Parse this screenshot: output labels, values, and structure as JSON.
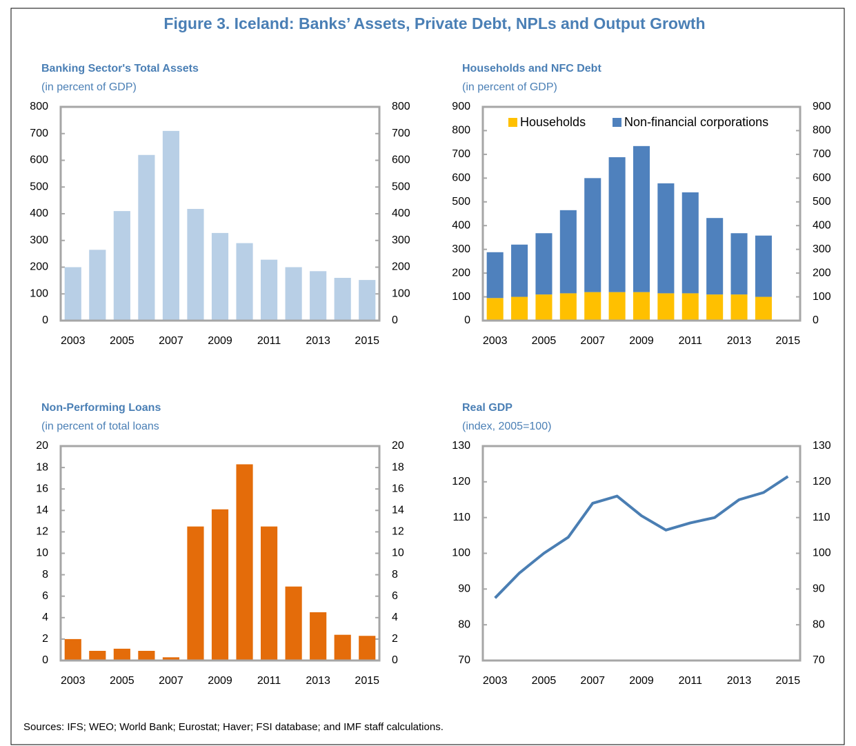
{
  "title": "Figure 3. Iceland: Banks’ Assets, Private Debt, NPLs and Output Growth",
  "source": "Sources: IFS; WEO; World Bank; Eurostat; Haver; FSI database; and IMF staff calculations.",
  "chart_data": [
    {
      "type": "bar",
      "title": "Banking Sector's Total Assets",
      "subtitle": "(in percent of GDP)",
      "categories": [
        "2003",
        null,
        "2005",
        null,
        "2007",
        null,
        "2009",
        null,
        "2011",
        null,
        "2013",
        null,
        "2015"
      ],
      "values": [
        200,
        265,
        410,
        620,
        710,
        418,
        328,
        290,
        228,
        200,
        185,
        160,
        152
      ],
      "color": "#b8cfe6",
      "ylim": [
        0,
        800
      ],
      "yticks": [
        0,
        100,
        200,
        300,
        400,
        500,
        600,
        700,
        800
      ]
    },
    {
      "type": "bar",
      "stacked": true,
      "title": "Households and NFC Debt",
      "subtitle": "(in percent of GDP)",
      "categories": [
        "2003",
        null,
        "2005",
        null,
        "2007",
        null,
        "2009",
        null,
        "2011",
        null,
        "2013",
        null,
        "2015"
      ],
      "series": [
        {
          "name": "Households",
          "color": "#ffc000",
          "values": [
            95,
            100,
            110,
            115,
            120,
            120,
            120,
            115,
            115,
            110,
            110,
            100,
            null
          ]
        },
        {
          "name": "Non-financial corporations",
          "color": "#4f81bd",
          "values": [
            193,
            220,
            258,
            350,
            480,
            568,
            615,
            463,
            425,
            322,
            258,
            258,
            null
          ]
        }
      ],
      "legend": "top",
      "ylim": [
        0,
        900
      ],
      "yticks": [
        0,
        100,
        200,
        300,
        400,
        500,
        600,
        700,
        800,
        900
      ]
    },
    {
      "type": "bar",
      "title": "Non-Performing Loans",
      "subtitle": "(in percent of total loans",
      "categories": [
        "2003",
        null,
        "2005",
        null,
        "2007",
        null,
        "2009",
        null,
        "2011",
        null,
        "2013",
        null,
        "2015"
      ],
      "values": [
        2.0,
        0.9,
        1.1,
        0.9,
        0.3,
        12.5,
        14.1,
        18.3,
        12.5,
        6.9,
        4.5,
        2.4,
        2.3
      ],
      "color": "#e46c0a",
      "ylim": [
        0,
        20
      ],
      "yticks": [
        0,
        2,
        4,
        6,
        8,
        10,
        12,
        14,
        16,
        18,
        20
      ]
    },
    {
      "type": "line",
      "title": "Real GDP",
      "subtitle": "(index, 2005=100)",
      "categories": [
        "2003",
        null,
        "2005",
        null,
        "2007",
        null,
        "2009",
        null,
        "2011",
        null,
        "2013",
        null,
        "2015"
      ],
      "values": [
        87.5,
        94.5,
        100,
        104.5,
        114,
        116,
        110.5,
        106.5,
        108.5,
        110,
        115,
        117,
        121.5
      ],
      "color": "#4a7eb3",
      "ylim": [
        70,
        130
      ],
      "yticks": [
        70,
        80,
        90,
        100,
        110,
        120,
        130
      ]
    }
  ]
}
